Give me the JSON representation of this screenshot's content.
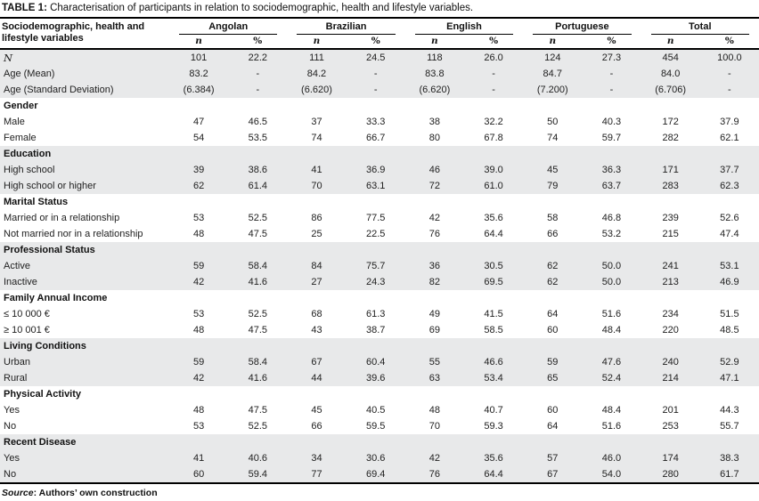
{
  "title": {
    "label": "TABLE 1:",
    "text": " Characterisation of participants in relation to sociodemographic, health and lifestyle variables."
  },
  "header": {
    "row_label": "Sociodemographic, health and lifestyle variables",
    "groups": [
      "Angolan",
      "Brazilian",
      "English",
      "Portuguese",
      "Total"
    ],
    "sub_n": "n",
    "sub_pct": "%"
  },
  "sections": [
    {
      "header": null,
      "shaded": true,
      "rows": [
        {
          "label": "N",
          "italic": true,
          "values": [
            "101",
            "22.2",
            "111",
            "24.5",
            "118",
            "26.0",
            "124",
            "27.3",
            "454",
            "100.0"
          ]
        },
        {
          "label": "Age (Mean)",
          "italic": false,
          "values": [
            "83.2",
            "-",
            "84.2",
            "-",
            "83.8",
            "-",
            "84.7",
            "-",
            "84.0",
            "-"
          ]
        },
        {
          "label": "Age (Standard Deviation)",
          "italic": false,
          "values": [
            "(6.384)",
            "-",
            "(6.620)",
            "-",
            "(6.620)",
            "-",
            "(7.200)",
            "-",
            "(6.706)",
            "-"
          ]
        }
      ]
    },
    {
      "header": "Gender",
      "shaded": false,
      "rows": [
        {
          "label": "Male",
          "italic": false,
          "values": [
            "47",
            "46.5",
            "37",
            "33.3",
            "38",
            "32.2",
            "50",
            "40.3",
            "172",
            "37.9"
          ]
        },
        {
          "label": "Female",
          "italic": false,
          "values": [
            "54",
            "53.5",
            "74",
            "66.7",
            "80",
            "67.8",
            "74",
            "59.7",
            "282",
            "62.1"
          ]
        }
      ]
    },
    {
      "header": "Education",
      "shaded": true,
      "rows": [
        {
          "label": "High school",
          "italic": false,
          "values": [
            "39",
            "38.6",
            "41",
            "36.9",
            "46",
            "39.0",
            "45",
            "36.3",
            "171",
            "37.7"
          ]
        },
        {
          "label": "High school or  higher",
          "italic": false,
          "values": [
            "62",
            "61.4",
            "70",
            "63.1",
            "72",
            "61.0",
            "79",
            "63.7",
            "283",
            "62.3"
          ]
        }
      ]
    },
    {
      "header": "Marital Status",
      "shaded": false,
      "rows": [
        {
          "label": "Married or in a relationship",
          "italic": false,
          "values": [
            "53",
            "52.5",
            "86",
            "77.5",
            "42",
            "35.6",
            "58",
            "46.8",
            "239",
            "52.6"
          ]
        },
        {
          "label": "Not married nor in a relationship",
          "italic": false,
          "values": [
            "48",
            "47.5",
            "25",
            "22.5",
            "76",
            "64.4",
            "66",
            "53.2",
            "215",
            "47.4"
          ]
        }
      ]
    },
    {
      "header": "Professional Status",
      "shaded": true,
      "rows": [
        {
          "label": "Active",
          "italic": false,
          "values": [
            "59",
            "58.4",
            "84",
            "75.7",
            "36",
            "30.5",
            "62",
            "50.0",
            "241",
            "53.1"
          ]
        },
        {
          "label": "Inactive",
          "italic": false,
          "values": [
            "42",
            "41.6",
            "27",
            "24.3",
            "82",
            "69.5",
            "62",
            "50.0",
            "213",
            "46.9"
          ]
        }
      ]
    },
    {
      "header": "Family Annual Income",
      "shaded": false,
      "rows": [
        {
          "label": "≤ 10 000 €",
          "italic": false,
          "values": [
            "53",
            "52.5",
            "68",
            "61.3",
            "49",
            "41.5",
            "64",
            "51.6",
            "234",
            "51.5"
          ]
        },
        {
          "label": "≥ 10 001 €",
          "italic": false,
          "values": [
            "48",
            "47.5",
            "43",
            "38.7",
            "69",
            "58.5",
            "60",
            "48.4",
            "220",
            "48.5"
          ]
        }
      ]
    },
    {
      "header": "Living Conditions",
      "shaded": true,
      "rows": [
        {
          "label": "Urban",
          "italic": false,
          "values": [
            "59",
            "58.4",
            "67",
            "60.4",
            "55",
            "46.6",
            "59",
            "47.6",
            "240",
            "52.9"
          ]
        },
        {
          "label": "Rural",
          "italic": false,
          "values": [
            "42",
            "41.6",
            "44",
            "39.6",
            "63",
            "53.4",
            "65",
            "52.4",
            "214",
            "47.1"
          ]
        }
      ]
    },
    {
      "header": "Physical Activity",
      "shaded": false,
      "rows": [
        {
          "label": "Yes",
          "italic": false,
          "values": [
            "48",
            "47.5",
            "45",
            "40.5",
            "48",
            "40.7",
            "60",
            "48.4",
            "201",
            "44.3"
          ]
        },
        {
          "label": "No",
          "italic": false,
          "values": [
            "53",
            "52.5",
            "66",
            "59.5",
            "70",
            "59.3",
            "64",
            "51.6",
            "253",
            "55.7"
          ]
        }
      ]
    },
    {
      "header": "Recent Disease",
      "shaded": true,
      "rows": [
        {
          "label": "Yes",
          "italic": false,
          "values": [
            "41",
            "40.6",
            "34",
            "30.6",
            "42",
            "35.6",
            "57",
            "46.0",
            "174",
            "38.3"
          ]
        },
        {
          "label": "No",
          "italic": false,
          "values": [
            "60",
            "59.4",
            "77",
            "69.4",
            "76",
            "64.4",
            "67",
            "54.0",
            "280",
            "61.7"
          ]
        }
      ]
    }
  ],
  "footer": {
    "source_label": "Source",
    "source_text": ": Authors’ own construction"
  }
}
